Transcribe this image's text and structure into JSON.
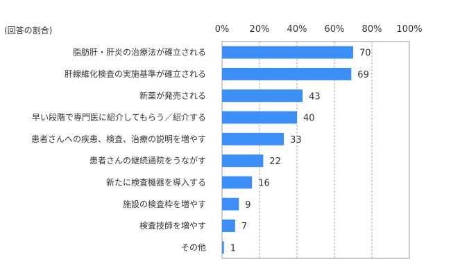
{
  "chart_data": {
    "type": "bar",
    "orientation": "horizontal",
    "unit_note": "(回答の割合)",
    "categories": [
      "脂肪肝・肝炎の治療法が確立される",
      "肝線維化検査の実施基準が確立される",
      "新薬が発売される",
      "早い段階で専門医に紹介してもらう／紹介する",
      "患者さんへの疾患、検査、治療の説明を増やす",
      "患者さんの継続通院をうながす",
      "新たに検査機器を導入する",
      "施設の検査枠を増やす",
      "検査技師を増やす",
      "その他"
    ],
    "values": [
      70,
      69,
      43,
      40,
      33,
      22,
      16,
      9,
      7,
      1
    ],
    "value_labels": [
      "70",
      "69",
      "43",
      "40",
      "33",
      "22",
      "16",
      "9",
      "7",
      "1"
    ],
    "x_tick_labels": [
      "0%",
      "20%",
      "40%",
      "60%",
      "80%",
      "100%"
    ],
    "xlim": [
      0,
      100
    ],
    "xticks": [
      0,
      20,
      40,
      60,
      80,
      100
    ],
    "grid": true,
    "legend": "none",
    "bar_color": "#3d8ef7",
    "grid_color": "#aaaaaa",
    "frame_color": "#9a9a9a"
  }
}
